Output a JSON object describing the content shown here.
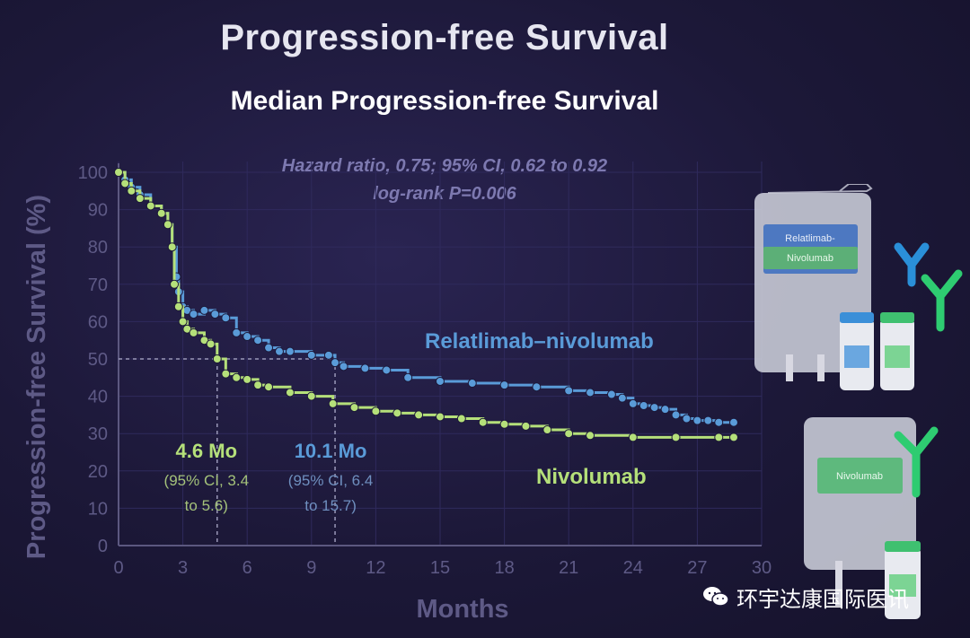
{
  "chart_data": {
    "type": "line",
    "title": "Progression-free Survival",
    "subtitle": "Median Progression-free Survival",
    "xlabel": "Months",
    "ylabel": "Progression-free Survival (%)",
    "xlim": [
      0,
      30
    ],
    "ylim": [
      0,
      100
    ],
    "xticks": [
      0,
      3,
      6,
      9,
      12,
      15,
      18,
      21,
      24,
      27,
      30
    ],
    "yticks": [
      0,
      10,
      20,
      30,
      40,
      50,
      60,
      70,
      80,
      90,
      100
    ],
    "grid": true,
    "annotations": {
      "stats_line1": "Hazard ratio, 0.75; 95% CI, 0.62 to 0.92",
      "stats_line2": "log-rank P=0.006",
      "median_relat": {
        "value": "10.1 Mo",
        "ci_line1": "(95% CI, 6.4",
        "ci_line2": "to 15.7)",
        "x": 10.1
      },
      "median_nivo": {
        "value": "4.6 Mo",
        "ci_line1": "(95% CI, 3.4",
        "ci_line2": "to 5.6)",
        "x": 4.6
      },
      "reference_y": 50
    },
    "series": [
      {
        "name": "Relatlimab–nivolumab",
        "color": "#5a9bd8",
        "x": [
          0,
          0.3,
          0.6,
          1.0,
          1.5,
          2.0,
          2.3,
          2.5,
          2.7,
          2.8,
          3.0,
          3.2,
          3.5,
          4.0,
          4.5,
          5.0,
          5.5,
          6.0,
          6.5,
          7.0,
          7.5,
          8.0,
          9.0,
          9.8,
          10.1,
          10.5,
          11.5,
          12.5,
          13.5,
          15.0,
          16.5,
          18.0,
          19.5,
          21.0,
          22.0,
          23.0,
          23.5,
          24.0,
          24.5,
          25.0,
          25.5,
          26.0,
          26.5,
          27.0,
          27.5,
          28.0,
          28.7
        ],
        "y": [
          100,
          98,
          96,
          94,
          91,
          89,
          86,
          80,
          72,
          68,
          64,
          63,
          62,
          63,
          62,
          61,
          57,
          56,
          55,
          53,
          52,
          52,
          51,
          51,
          49,
          48,
          47.5,
          47,
          45,
          44,
          43.5,
          43,
          42.5,
          41.5,
          41,
          40.5,
          39.5,
          38,
          37.5,
          37,
          36.5,
          35,
          34,
          33.5,
          33.5,
          33,
          33
        ]
      },
      {
        "name": "Nivolumab",
        "color": "#b5e07a",
        "x": [
          0,
          0.3,
          0.6,
          1.0,
          1.5,
          2.0,
          2.3,
          2.5,
          2.6,
          2.8,
          3.0,
          3.2,
          3.5,
          4.0,
          4.3,
          4.6,
          5.0,
          5.5,
          6.0,
          6.5,
          7.0,
          8.0,
          9.0,
          10.0,
          11.0,
          12.0,
          13.0,
          14.0,
          15.0,
          16.0,
          17.0,
          18.0,
          19.0,
          20.0,
          21.0,
          22.0,
          24.0,
          26.0,
          28.0,
          28.7
        ],
        "y": [
          100,
          97,
          95,
          93,
          91,
          89,
          86,
          80,
          70,
          64,
          60,
          58,
          57,
          55,
          54,
          50,
          46,
          45,
          44.5,
          43,
          42.5,
          41,
          40,
          38,
          37,
          36,
          35.5,
          35,
          34.5,
          34,
          33,
          32.5,
          32,
          31,
          30,
          29.5,
          29,
          29,
          29,
          29
        ]
      }
    ]
  },
  "images": {
    "bag1_label": "Relatlimab-Nivolumab",
    "bag2_label": "Nivolumab"
  },
  "watermark": {
    "text": "环宇达康国际医讯"
  }
}
